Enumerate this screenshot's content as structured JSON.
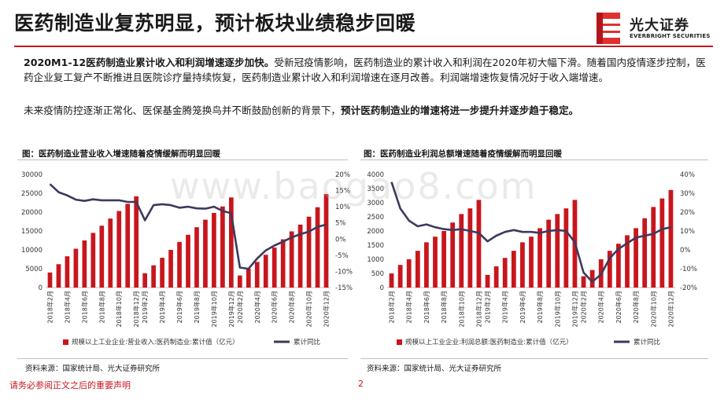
{
  "header": {
    "title": "医药制造业复苏明显，预计板块业绩稳步回暖",
    "logo_cn": "光大证券",
    "logo_en": "EVERBRIGHT SECURITIES"
  },
  "body": {
    "p1_bold": "2020M1-12医药制造业累计收入和利润增速逐步加快。",
    "p1_rest": "受新冠疫情影响，医药制造业的累计收入和利润在2020年初大幅下滑。随着国内疫情逐步控制，医药企业复工复产不断推进且医院诊疗量持续恢复，医药制造业累计收入和利润增速在逐月改善。利润端增速恢复情况好于收入端增速。",
    "p2_rest": "未来疫情防控逐渐正常化、医保基金腾笼换鸟并不断鼓励创新的背景下，",
    "p2_bold": "预计医药制造业的增速将进一步提升并逐步趋于稳定。"
  },
  "watermark": "www.baogao8.com",
  "footer": {
    "disclaimer": "请务必参阅正文之后的重要声明",
    "page": "2"
  },
  "colors": {
    "bar": "#c8161d",
    "line": "#3c3a5e",
    "accent": "#c8161d"
  },
  "chart_data": [
    {
      "type": "bar+line",
      "title": "图：医药制造业营业收入增速随着疫情缓解而明显回暖",
      "categories": [
        "2018年2月",
        "2018年3月",
        "2018年4月",
        "2018年5月",
        "2018年6月",
        "2018年7月",
        "2018年8月",
        "2018年9月",
        "2018年10月",
        "2018年11月",
        "2018年12月",
        "2019年2月",
        "2019年3月",
        "2019年4月",
        "2019年5月",
        "2019年6月",
        "2019年7月",
        "2019年8月",
        "2019年9月",
        "2019年10月",
        "2019年11月",
        "2019年12月",
        "2020年2月",
        "2020年3月",
        "2020年4月",
        "2020年5月",
        "2020年6月",
        "2020年7月",
        "2020年8月",
        "2020年9月",
        "2020年10月",
        "2020年11月",
        "2020年12月"
      ],
      "tick_labels": [
        "2018年2月",
        "2018年4月",
        "2018年6月",
        "2018年8月",
        "2018年10月",
        "2018年12月",
        "2019年2月",
        "2019年4月",
        "2019年6月",
        "2019年8月",
        "2019年10月",
        "2019年12月",
        "2020年2月",
        "2020年4月",
        "2020年6月",
        "2020年8月",
        "2020年10月",
        "2020年12月"
      ],
      "series": [
        {
          "name": "规模以上工业企业:营业收入:医药制造业:累计值（亿元）",
          "type": "bar",
          "axis": "left",
          "values": [
            4000,
            6200,
            8300,
            10300,
            12500,
            14500,
            16400,
            18300,
            20300,
            22200,
            24200,
            3800,
            5900,
            7900,
            10000,
            12100,
            14000,
            16000,
            18000,
            19800,
            21500,
            23900,
            3200,
            5000,
            6800,
            8700,
            10600,
            12800,
            14900,
            16700,
            18800,
            21300,
            24800
          ]
        },
        {
          "name": "累计同比",
          "type": "line",
          "axis": "right",
          "values": [
            17.0,
            14.5,
            13.5,
            12.2,
            11.8,
            12.3,
            12.0,
            12.0,
            12.0,
            11.5,
            11.5,
            5.8,
            10.5,
            10.8,
            10.5,
            9.7,
            10.0,
            9.5,
            9.4,
            10.0,
            8.7,
            8.0,
            -8.8,
            -9.2,
            -6.0,
            -3.5,
            -2.0,
            -0.8,
            0.5,
            1.5,
            2.3,
            3.8,
            4.5
          ]
        }
      ],
      "ylim_left": [
        0,
        30000
      ],
      "yticks_left": [
        "0",
        "5000",
        "10000",
        "15000",
        "20000",
        "25000",
        "30000"
      ],
      "ylim_right": [
        -15,
        20
      ],
      "yticks_right": [
        "-15%",
        "-10%",
        "-5%",
        "0%",
        "5%",
        "10%",
        "15%",
        "20%"
      ],
      "legend": [
        "规模以上工业企业:营业收入:医药制造业:累计值（亿元）",
        "累计同比"
      ],
      "legend_position": "bottom",
      "source": "资料来源：国家统计局、光大证券研究所"
    },
    {
      "type": "bar+line",
      "title": "图：医药制造业利润总额增速随着疫情缓解而明显回暖",
      "categories": [
        "2018年2月",
        "2018年3月",
        "2018年4月",
        "2018年5月",
        "2018年6月",
        "2018年7月",
        "2018年8月",
        "2018年9月",
        "2018年10月",
        "2018年11月",
        "2018年12月",
        "2019年2月",
        "2019年3月",
        "2019年4月",
        "2019年5月",
        "2019年6月",
        "2019年7月",
        "2019年8月",
        "2019年9月",
        "2019年10月",
        "2019年11月",
        "2019年12月",
        "2020年2月",
        "2020年3月",
        "2020年4月",
        "2020年5月",
        "2020年6月",
        "2020年7月",
        "2020年8月",
        "2020年9月",
        "2020年10月",
        "2020年11月",
        "2020年12月"
      ],
      "tick_labels": [
        "2018年2月",
        "2018年4月",
        "2018年6月",
        "2018年8月",
        "2018年10月",
        "2018年12月",
        "2019年2月",
        "2019年4月",
        "2019年6月",
        "2019年8月",
        "2019年10月",
        "2019年12月",
        "2020年2月",
        "2020年4月",
        "2020年6月",
        "2020年8月",
        "2020年10月",
        "2020年12月"
      ],
      "series": [
        {
          "name": "规模以上工业企业:利润总额:医药制造业:累计值（亿元）",
          "type": "bar",
          "axis": "left",
          "values": [
            500,
            800,
            1000,
            1300,
            1600,
            1800,
            2000,
            2300,
            2600,
            2800,
            3100,
            450,
            750,
            1050,
            1300,
            1600,
            1800,
            2100,
            2400,
            2600,
            2800,
            3100,
            400,
            620,
            1000,
            1300,
            1550,
            1850,
            2100,
            2450,
            2850,
            3150,
            3450
          ]
        },
        {
          "name": "累计同比",
          "type": "line",
          "axis": "right",
          "values": [
            36.0,
            22.0,
            15.5,
            12.5,
            13.5,
            12.0,
            11.0,
            10.5,
            11.0,
            10.0,
            9.0,
            4.5,
            7.5,
            9.5,
            10.5,
            9.5,
            9.5,
            9.0,
            10.0,
            10.5,
            10.0,
            4.0,
            -12.0,
            -17.0,
            -13.0,
            -4.5,
            0.5,
            3.5,
            6.5,
            7.5,
            8.5,
            11.0,
            12.0
          ]
        }
      ],
      "ylim_left": [
        0,
        4000
      ],
      "yticks_left": [
        "0",
        "500",
        "1000",
        "1500",
        "2000",
        "2500",
        "3000",
        "3500",
        "4000"
      ],
      "ylim_right": [
        -20,
        40
      ],
      "yticks_right": [
        "-20%",
        "-10%",
        "0%",
        "10%",
        "20%",
        "30%",
        "40%"
      ],
      "legend": [
        "规模以上工业企业:利润总额:医药制造业:累计值（亿元）",
        "累计同比"
      ],
      "legend_position": "bottom",
      "source": "资料来源：国家统计局、光大证券研究所"
    }
  ]
}
